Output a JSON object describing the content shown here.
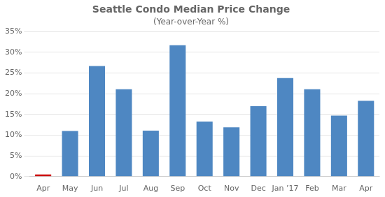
{
  "chart_data": {
    "type": "bar",
    "title": "Seattle Condo Median Price Change",
    "subtitle": "(Year-over-Year %)",
    "categories": [
      "Apr",
      "May",
      "Jun",
      "Jul",
      "Aug",
      "Sep",
      "Oct",
      "Nov",
      "Dec",
      "Jan ’17",
      "Feb",
      "Mar",
      "Apr"
    ],
    "values": [
      0.005,
      0.11,
      0.267,
      0.211,
      0.111,
      0.317,
      0.133,
      0.119,
      0.17,
      0.238,
      0.211,
      0.147,
      0.183
    ],
    "colors": [
      "#CC0000",
      "#4E87C2",
      "#4E87C2",
      "#4E87C2",
      "#4E87C2",
      "#4E87C2",
      "#4E87C2",
      "#4E87C2",
      "#4E87C2",
      "#4E87C2",
      "#4E87C2",
      "#4E87C2",
      "#4E87C2"
    ],
    "ylim": [
      0,
      0.35
    ],
    "yticks": [
      {
        "value": 0.0,
        "label": "0%"
      },
      {
        "value": 0.05,
        "label": "5%"
      },
      {
        "value": 0.1,
        "label": "10%"
      },
      {
        "value": 0.15,
        "label": "15%"
      },
      {
        "value": 0.2,
        "label": "20%"
      },
      {
        "value": 0.25,
        "label": "25%"
      },
      {
        "value": 0.3,
        "label": "30%"
      },
      {
        "value": 0.35,
        "label": "35%"
      }
    ],
    "grid": true
  }
}
